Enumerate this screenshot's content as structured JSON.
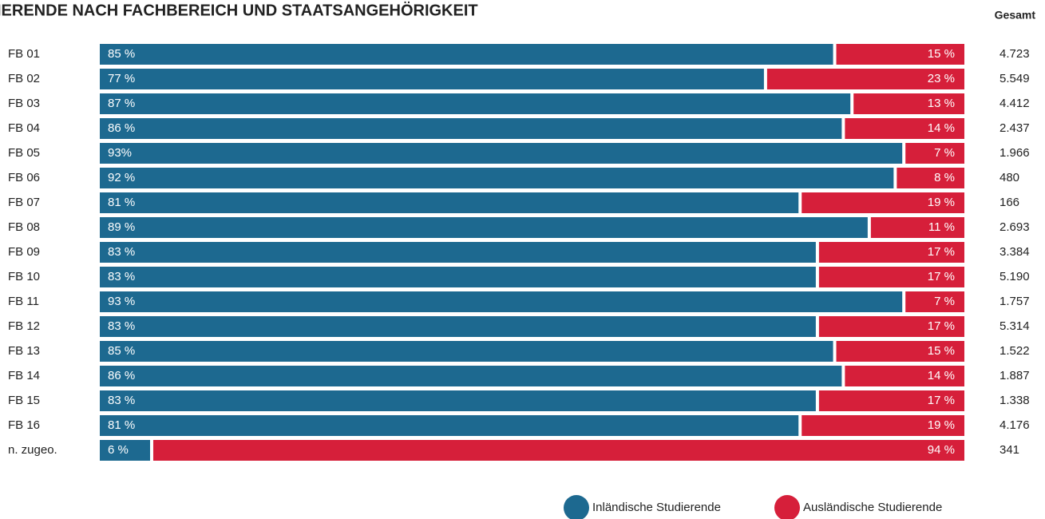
{
  "chart_data": {
    "type": "stacked-bar-horizontal",
    "title": "IERENDE NACH FACHBEREICH UND STAATSANGEHÖRIGKEIT",
    "categories": [
      "FB 01",
      "FB 02",
      "FB 03",
      "FB 04",
      "FB 05",
      "FB 06",
      "FB 07",
      "FB 08",
      "FB 09",
      "FB 10",
      "FB 11",
      "FB 12",
      "FB 13",
      "FB 14",
      "FB 15",
      "FB 16",
      "n. zugeo."
    ],
    "xlim": [
      0,
      100
    ],
    "series": [
      {
        "name": "Inländische Studierende",
        "color": "#1d6990",
        "values": [
          85,
          77,
          87,
          86,
          93,
          92,
          81,
          89,
          83,
          83,
          93,
          83,
          85,
          86,
          83,
          81,
          6
        ],
        "value_labels": [
          "85 %",
          "77 %",
          "87 %",
          "86 %",
          "93%",
          "92 %",
          "81 %",
          "89 %",
          "83 %",
          "83 %",
          "93 %",
          "83 %",
          "85 %",
          "86 %",
          "83 %",
          "81 %",
          "6 %"
        ]
      },
      {
        "name": "Ausländische Studierende",
        "color": "#d61f3a",
        "values": [
          15,
          23,
          13,
          14,
          7,
          8,
          19,
          11,
          17,
          17,
          7,
          17,
          15,
          14,
          17,
          19,
          94
        ],
        "value_labels": [
          "15 %",
          "23 %",
          "13 %",
          "14 %",
          "7 %",
          "8 %",
          "19 %",
          "11 %",
          "17 %",
          "17 %",
          "7 %",
          "17 %",
          "15 %",
          "14 %",
          "17 %",
          "19 %",
          "94 %"
        ]
      }
    ],
    "totals": {
      "header": "Gesamt",
      "values": [
        4723,
        5549,
        4412,
        2437,
        1966,
        480,
        166,
        2693,
        3384,
        5190,
        1757,
        5314,
        1522,
        1887,
        1338,
        4176,
        341
      ],
      "value_labels": [
        "4.723",
        "5.549",
        "4.412",
        "2.437",
        "1.966",
        "480",
        "166",
        "2.693",
        "3.384",
        "5.190",
        "1.757",
        "5.314",
        "1.522",
        "1.887",
        "1.338",
        "4.176",
        "341"
      ]
    }
  }
}
